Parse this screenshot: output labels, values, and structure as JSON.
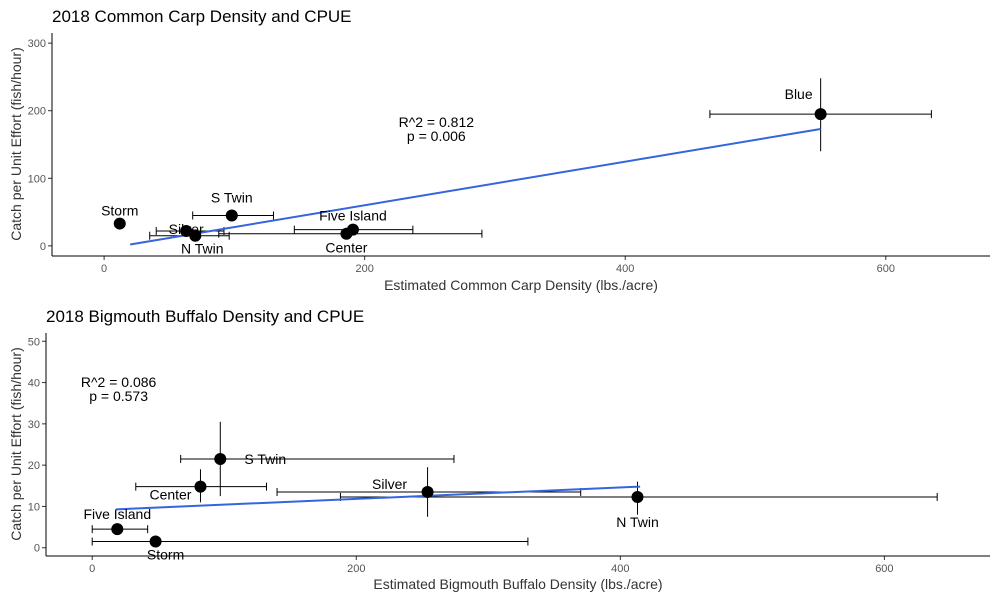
{
  "chart_data": [
    {
      "type": "scatter",
      "title": "2018 Common Carp Density and CPUE",
      "xlabel": "Estimated Common Carp Density (lbs./acre)",
      "ylabel": "Catch per Unit Effort (fish/hour)",
      "xlim": [
        -40,
        680
      ],
      "ylim": [
        -15,
        315
      ],
      "xticks": [
        0,
        200,
        400,
        600
      ],
      "yticks": [
        0,
        100,
        200,
        300
      ],
      "grid": false,
      "fit_color": "#3366dd",
      "point_color": "#000000",
      "annotation": [
        "R^2 = 0.812",
        "p = 0.006"
      ],
      "annotation_pos": [
        255,
        170
      ],
      "fit": [
        [
          20,
          2
        ],
        [
          550,
          173
        ]
      ],
      "points": [
        {
          "name": "Blue",
          "x": 550,
          "y": 195,
          "xerr": [
            465,
            635
          ],
          "yerr": [
            140,
            248
          ],
          "label_dx": -22,
          "label_dy": -20
        },
        {
          "name": "Storm",
          "x": 12,
          "y": 33,
          "label_dx": 0,
          "label_dy": -13
        },
        {
          "name": "S Twin",
          "x": 98,
          "y": 45,
          "xerr": [
            68,
            130
          ],
          "label_dx": 0,
          "label_dy": -18
        },
        {
          "name": "Silver",
          "x": 63,
          "y": 22,
          "xerr": [
            40,
            92
          ],
          "label_dx": 0,
          "label_dy": -2
        },
        {
          "name": "N Twin",
          "x": 70,
          "y": 15,
          "xerr": [
            35,
            96
          ],
          "label_dx": 7,
          "label_dy": 13
        },
        {
          "name": "Five Island",
          "x": 191,
          "y": 24,
          "xerr": [
            146,
            237
          ],
          "label_dx": 0,
          "label_dy": -14
        },
        {
          "name": "Center",
          "x": 186,
          "y": 18,
          "xerr": [
            88,
            290
          ],
          "label_dx": 0,
          "label_dy": 14
        }
      ]
    },
    {
      "type": "scatter",
      "title": "2018 Bigmouth Buffalo Density and CPUE",
      "xlabel": "Estimated Bigmouth Buffalo Density (lbs./acre)",
      "ylabel": "Catch per Unit Effort (fish/hour)",
      "xlim": [
        -35,
        680
      ],
      "ylim": [
        -2,
        52
      ],
      "xticks": [
        0,
        200,
        400,
        600
      ],
      "yticks": [
        0,
        10,
        20,
        30,
        40,
        50
      ],
      "grid": false,
      "fit_color": "#3366dd",
      "point_color": "#000000",
      "annotation": [
        "R^2 = 0.086",
        "p = 0.573"
      ],
      "annotation_pos": [
        20,
        38
      ],
      "fit": [
        [
          18,
          9.3
        ],
        [
          415,
          14.8
        ]
      ],
      "points": [
        {
          "name": "S Twin",
          "x": 97,
          "y": 21.5,
          "xerr": [
            67,
            274
          ],
          "yerr": [
            12.5,
            30.5
          ],
          "label_dx": 45,
          "label_dy": 0
        },
        {
          "name": "Center",
          "x": 82,
          "y": 14.8,
          "xerr": [
            33,
            132
          ],
          "yerr": [
            11,
            19
          ],
          "label_dx": -30,
          "label_dy": 8
        },
        {
          "name": "Silver",
          "x": 254,
          "y": 13.5,
          "xerr": [
            140,
            370
          ],
          "yerr": [
            7.5,
            19.5
          ],
          "label_dx": -38,
          "label_dy": -8
        },
        {
          "name": "N Twin",
          "x": 413,
          "y": 12.3,
          "xerr": [
            188,
            640
          ],
          "yerr": [
            8,
            16
          ],
          "label_dx": 0,
          "label_dy": 25
        },
        {
          "name": "Five Island",
          "x": 19,
          "y": 4.5,
          "xerr": [
            0,
            42
          ],
          "label_dx": 0,
          "label_dy": -15
        },
        {
          "name": "Storm",
          "x": 48,
          "y": 1.5,
          "xerr": [
            0,
            330
          ],
          "label_dx": 10,
          "label_dy": 13
        }
      ]
    }
  ]
}
